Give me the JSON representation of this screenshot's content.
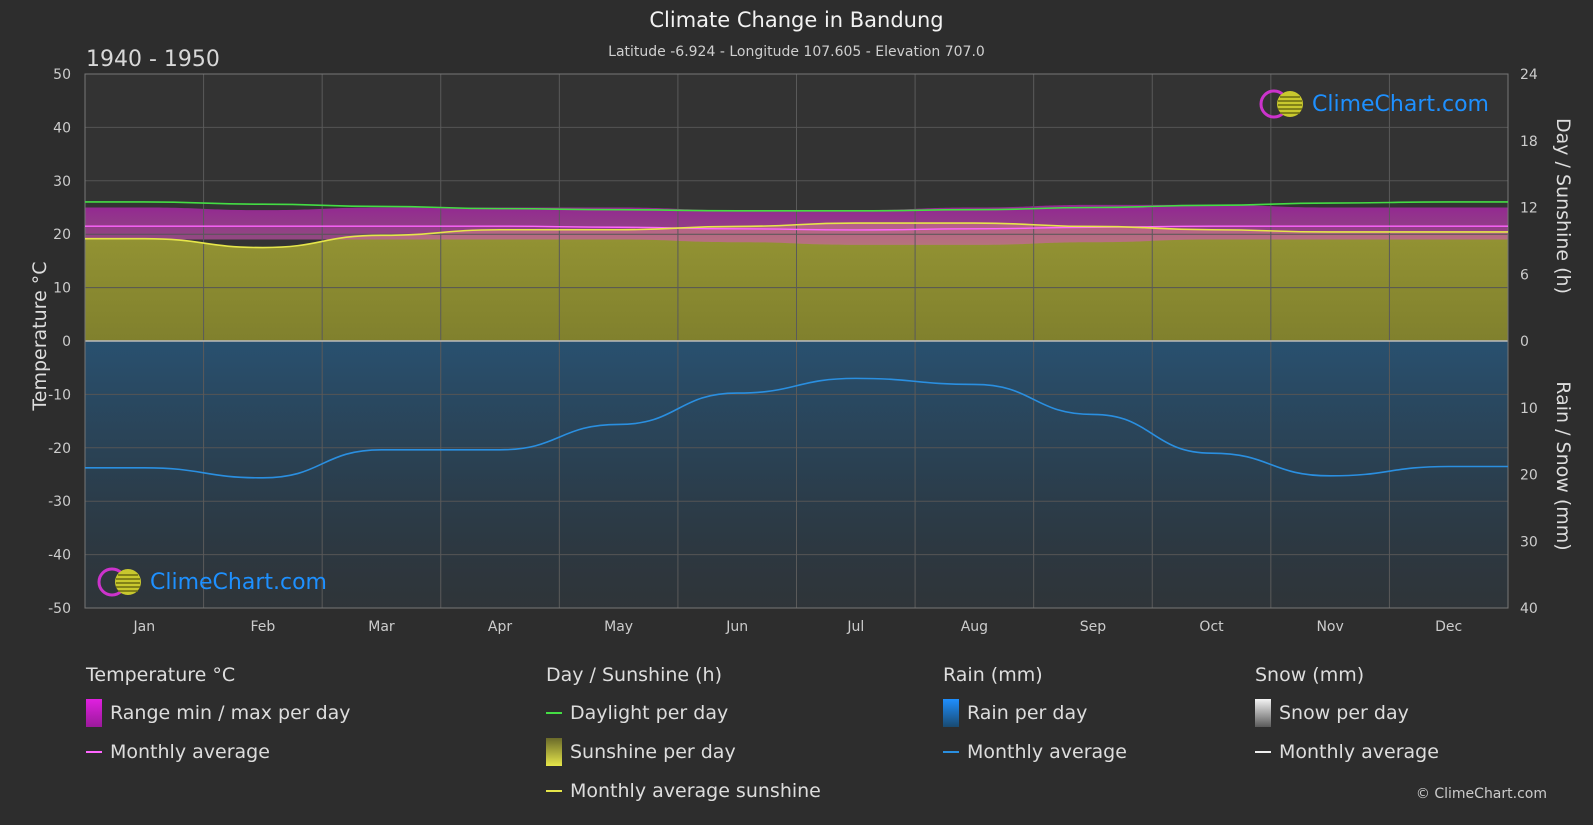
{
  "header": {
    "title": "Climate Change in Bandung",
    "subtitle": "Latitude -6.924 - Longitude 107.605 - Elevation 707.0",
    "period": "1940 - 1950"
  },
  "axes": {
    "left_title": "Temperature °C",
    "right_top_title": "Day / Sunshine (h)",
    "right_bottom_title": "Rain / Snow (mm)",
    "left_ticks": [
      "50",
      "40",
      "30",
      "20",
      "10",
      "0",
      "-10",
      "-20",
      "-30",
      "-40",
      "-50"
    ],
    "right_top_ticks": [
      "24",
      "18",
      "12",
      "6",
      "0"
    ],
    "right_bottom_ticks": [
      "10",
      "20",
      "30",
      "40"
    ]
  },
  "logo_text": "ClimeChart.com",
  "copyright": "© ClimeChart.com",
  "legend": {
    "temperature": {
      "heading": "Temperature °C",
      "range": "Range min / max per day",
      "avg": "Monthly average"
    },
    "sunshine": {
      "heading": "Day / Sunshine (h)",
      "daylight": "Daylight per day",
      "sunshine": "Sunshine per day",
      "avg": "Monthly average sunshine"
    },
    "rain": {
      "heading": "Rain (mm)",
      "per_day": "Rain per day",
      "avg": "Monthly average"
    },
    "snow": {
      "heading": "Snow (mm)",
      "per_day": "Snow per day",
      "avg": "Monthly average"
    }
  },
  "colors": {
    "daylight": "#44dd44",
    "sunshine_avg": "#e6e64a",
    "sunshine_fill": "#9a9a2e",
    "temp_range": "#cc22cc",
    "temp_avg": "#ff66ff",
    "rain": "#1e6fae",
    "rain_avg": "#2a8fe0",
    "snow": "#dddddd"
  },
  "chart_data": {
    "type": "line",
    "categories": [
      "Jan",
      "Feb",
      "Mar",
      "Apr",
      "May",
      "Jun",
      "Jul",
      "Aug",
      "Sep",
      "Oct",
      "Nov",
      "Dec"
    ],
    "temp_ylim": [
      -50,
      50
    ],
    "sun_ylim": [
      0,
      24
    ],
    "rain_ylim": [
      0,
      40
    ],
    "series": [
      {
        "name": "Daylight per day",
        "axis": "sun",
        "values": [
          12.5,
          12.3,
          12.1,
          11.9,
          11.8,
          11.7,
          11.7,
          11.8,
          12.0,
          12.2,
          12.4,
          12.5
        ]
      },
      {
        "name": "Monthly average sunshine",
        "axis": "sun",
        "values": [
          9.2,
          8.4,
          9.5,
          10.0,
          10.0,
          10.3,
          10.6,
          10.6,
          10.3,
          10.0,
          9.8,
          9.8
        ]
      },
      {
        "name": "Range min / max per day",
        "axis": "temp",
        "min": [
          19,
          19,
          19,
          19,
          19,
          18.5,
          18,
          18,
          18.5,
          19,
          19,
          19
        ],
        "max": [
          25,
          24.5,
          25,
          25,
          25,
          24.5,
          24.5,
          25,
          25.5,
          25.5,
          25,
          25
        ]
      },
      {
        "name": "Monthly average",
        "axis": "temp",
        "values": [
          21.5,
          21.5,
          21.5,
          21.5,
          21.3,
          21,
          20.8,
          21,
          21.3,
          21.5,
          21.5,
          21.5
        ]
      },
      {
        "name": "Rain monthly average",
        "axis": "rain",
        "values": [
          19.0,
          20.5,
          16.3,
          16.3,
          12.5,
          7.8,
          5.6,
          6.5,
          11.0,
          16.8,
          20.2,
          18.8
        ]
      }
    ]
  }
}
